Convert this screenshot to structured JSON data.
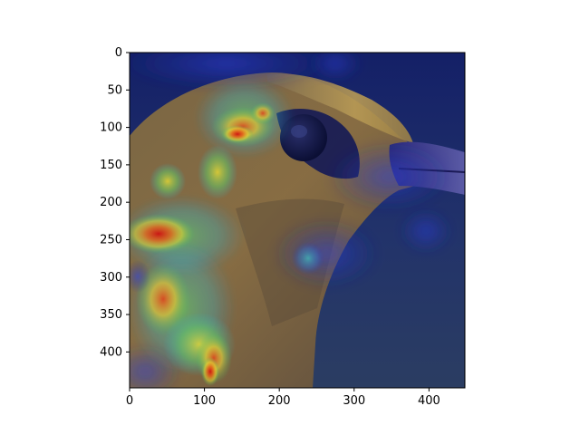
{
  "figure": {
    "image_description_tag": "bird-head-gradcam-heatmap",
    "background_color": "#ffffff",
    "palette": {
      "bg_navy": "#1c2a5a",
      "feather_brown": "#8a6c3c",
      "heat_red": "#d01818",
      "heat_yellow": "#f0e030",
      "heat_green": "#3cbf6a",
      "heat_cyan": "#2fb3d6"
    }
  },
  "axes": {
    "x_ticks": [
      "0",
      "100",
      "200",
      "300",
      "400"
    ],
    "y_ticks": [
      "0",
      "50",
      "100",
      "150",
      "200",
      "250",
      "300",
      "350",
      "400"
    ],
    "x_range": [
      0,
      448
    ],
    "y_range": [
      0,
      448
    ],
    "y_inverted": true
  }
}
